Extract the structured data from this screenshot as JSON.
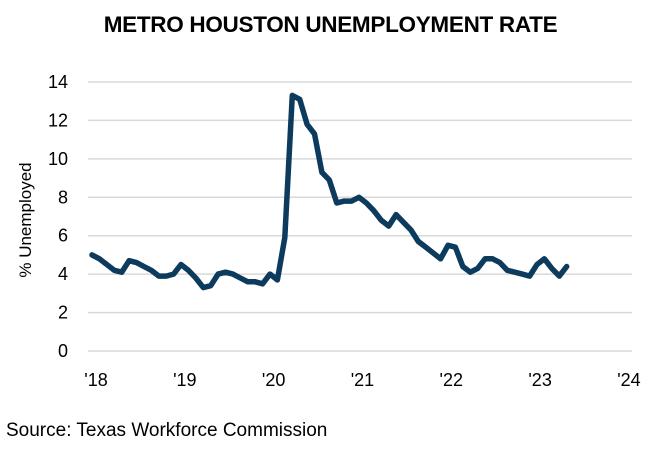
{
  "title": "METRO HOUSTON UNEMPLOYMENT RATE",
  "y_axis_label": "% Unemployed",
  "source": "Source: Texas Workforce Commission",
  "colors": {
    "line": "#0d3b5e",
    "grid": "#d9d9d9"
  },
  "chart_data": {
    "type": "line",
    "title": "METRO HOUSTON UNEMPLOYMENT RATE",
    "xlabel": "",
    "ylabel": "% Unemployed",
    "ylim": [
      0,
      14
    ],
    "yticks": [
      0,
      2,
      4,
      6,
      8,
      10,
      12,
      14
    ],
    "xticks": [
      "'18",
      "'19",
      "'20",
      "'21",
      "'22",
      "'23",
      "'24"
    ],
    "grid": "horizontal",
    "legend": "none",
    "x_start": "2018-01",
    "x_frequency": "monthly",
    "series": [
      {
        "name": "Metro Houston Unemployment Rate",
        "values": [
          5.0,
          4.8,
          4.5,
          4.2,
          4.1,
          4.7,
          4.6,
          4.4,
          4.2,
          3.9,
          3.9,
          4.0,
          4.5,
          4.2,
          3.8,
          3.3,
          3.4,
          4.0,
          4.1,
          4.0,
          3.8,
          3.6,
          3.6,
          3.5,
          4.0,
          3.7,
          5.9,
          13.3,
          13.1,
          11.8,
          11.3,
          9.3,
          8.9,
          7.7,
          7.8,
          7.8,
          8.0,
          7.7,
          7.3,
          6.8,
          6.5,
          7.1,
          6.7,
          6.3,
          5.7,
          5.4,
          5.1,
          4.8,
          5.5,
          5.4,
          4.4,
          4.1,
          4.3,
          4.8,
          4.8,
          4.6,
          4.2,
          4.1,
          4.0,
          3.9,
          4.5,
          4.8,
          4.3,
          3.9,
          4.4
        ]
      }
    ]
  }
}
